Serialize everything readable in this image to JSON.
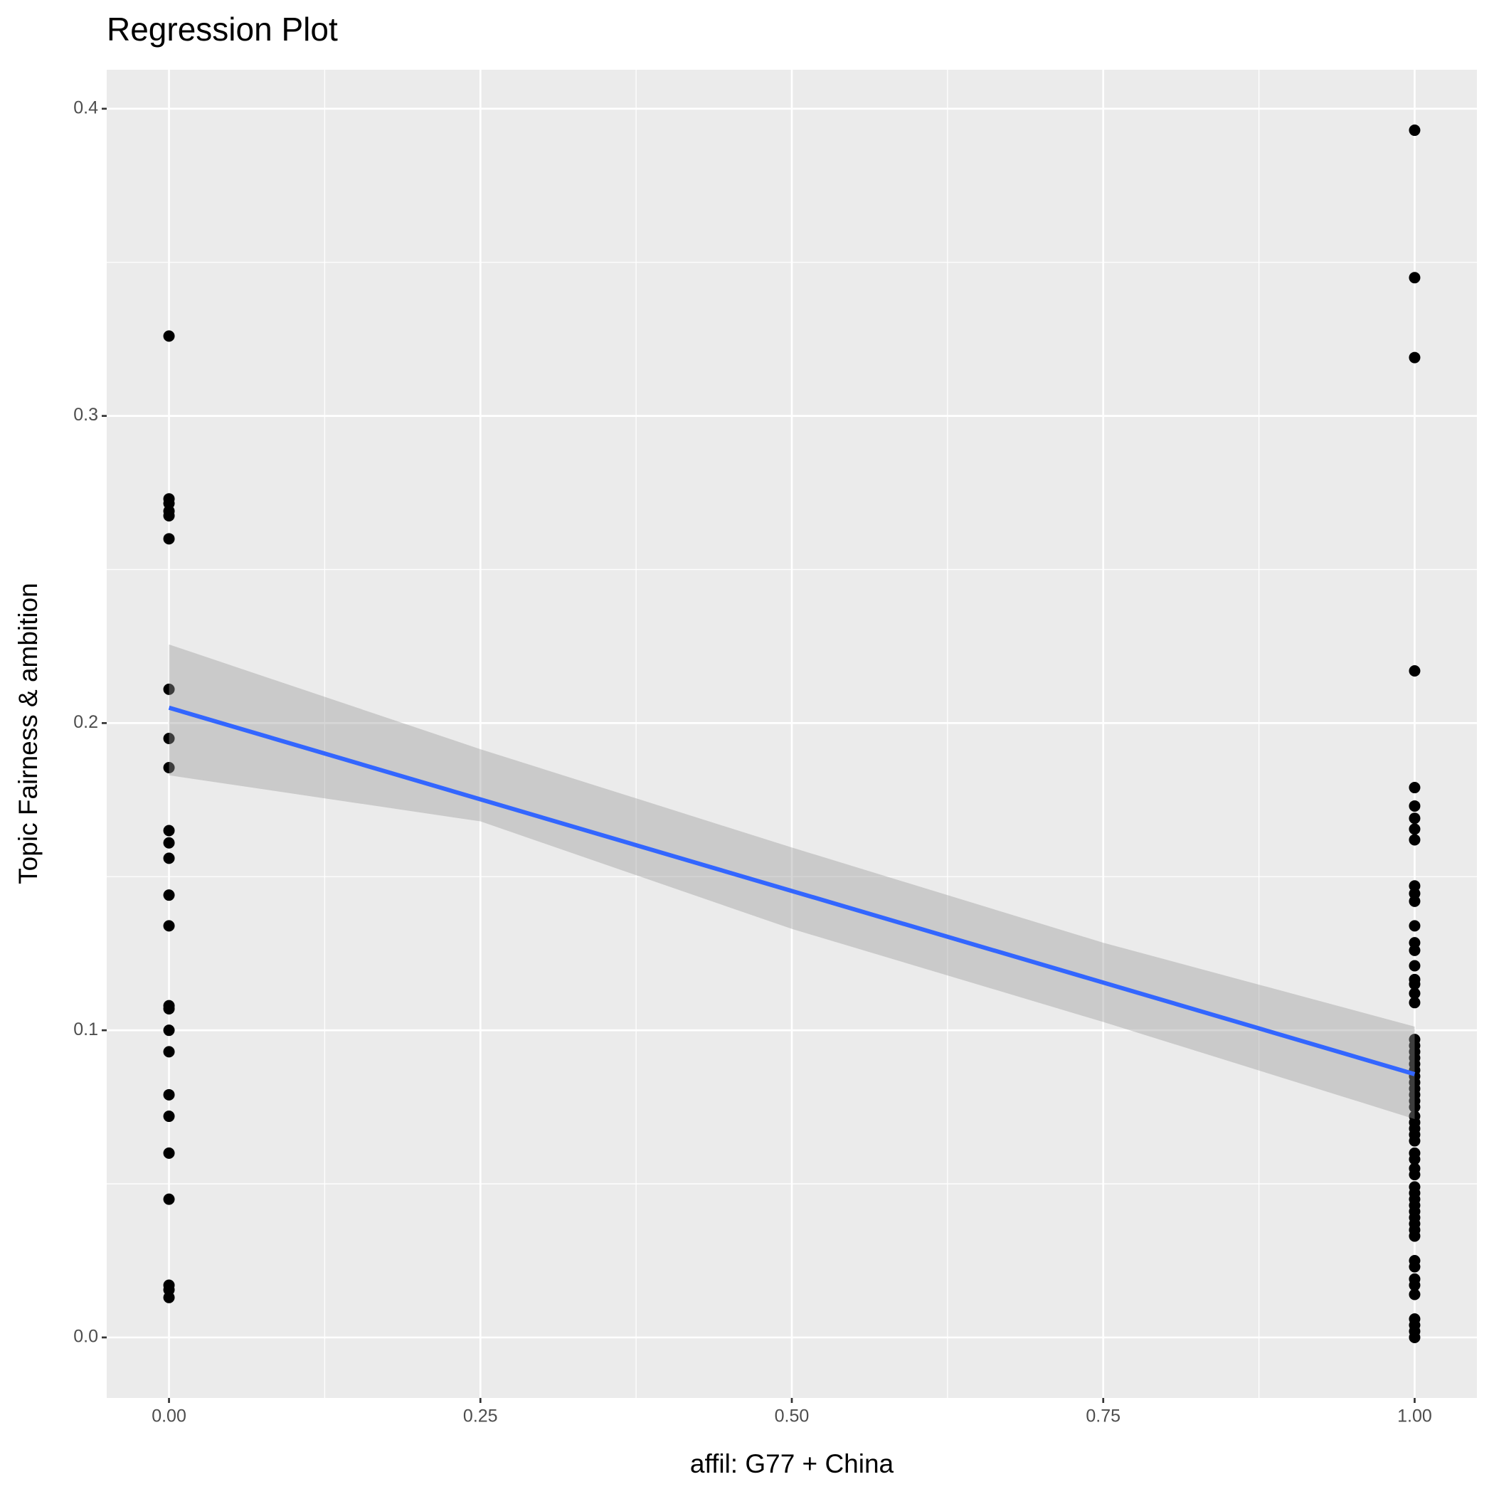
{
  "chart_data": {
    "type": "scatter",
    "title": "Regression Plot",
    "x_label": "affil: G77 + China",
    "y_label": "Topic Fairness & ambition",
    "xlim": [
      -0.05,
      1.05
    ],
    "ylim": [
      -0.0197,
      0.4127
    ],
    "xticks": [
      {
        "value": 0,
        "label": "0.00"
      },
      {
        "value": 0.25,
        "label": "0.25"
      },
      {
        "value": 0.5,
        "label": "0.50"
      },
      {
        "value": 0.75,
        "label": "0.75"
      },
      {
        "value": 1,
        "label": "1.00"
      }
    ],
    "yticks": [
      {
        "value": 0,
        "label": "0.0"
      },
      {
        "value": 0.1,
        "label": "0.1"
      },
      {
        "value": 0.2,
        "label": "0.2"
      },
      {
        "value": 0.3,
        "label": "0.3"
      },
      {
        "value": 0.4,
        "label": "0.4"
      }
    ],
    "minor_xticks": [
      0.125,
      0.375,
      0.625,
      0.875
    ],
    "minor_yticks": [
      0.05,
      0.15,
      0.25,
      0.35
    ],
    "grid": true,
    "points": {
      "color": "#000000",
      "x": [
        0,
        0,
        0,
        0,
        0,
        0,
        0,
        0,
        0,
        0,
        0,
        0,
        0,
        0,
        0,
        0,
        0,
        0,
        0,
        0,
        0,
        0,
        0,
        0,
        0,
        1,
        1,
        1,
        1,
        1,
        1,
        1,
        1,
        1,
        1,
        1,
        1,
        1,
        1,
        1,
        1,
        1,
        1,
        1,
        1,
        1,
        1,
        1,
        1,
        1,
        1,
        1,
        1,
        1,
        1,
        1,
        1,
        1,
        1,
        1,
        1,
        1,
        1,
        1,
        1,
        1,
        1,
        1,
        1,
        1,
        1,
        1,
        1,
        1,
        1,
        1,
        1,
        1,
        1,
        1,
        1,
        1,
        1,
        1
      ],
      "values": [
        0.326,
        0.273,
        0.2715,
        0.269,
        0.2675,
        0.26,
        0.211,
        0.195,
        0.1855,
        0.165,
        0.161,
        0.156,
        0.144,
        0.134,
        0.108,
        0.107,
        0.1,
        0.093,
        0.079,
        0.072,
        0.06,
        0.045,
        0.017,
        0.0155,
        0.013,
        0.393,
        0.345,
        0.319,
        0.217,
        0.179,
        0.173,
        0.169,
        0.1655,
        0.162,
        0.147,
        0.1445,
        0.142,
        0.134,
        0.1285,
        0.126,
        0.121,
        0.1165,
        0.115,
        0.112,
        0.109,
        0.097,
        0.095,
        0.093,
        0.091,
        0.089,
        0.087,
        0.085,
        0.083,
        0.081,
        0.079,
        0.077,
        0.075,
        0.072,
        0.07,
        0.068,
        0.066,
        0.064,
        0.06,
        0.058,
        0.055,
        0.053,
        0.049,
        0.047,
        0.045,
        0.043,
        0.041,
        0.039,
        0.037,
        0.035,
        0.033,
        0.025,
        0.023,
        0.019,
        0.017,
        0.014,
        0.006,
        0.004,
        0.002,
        0
      ]
    },
    "fit": {
      "color": "#3366FF",
      "x": [
        0,
        1
      ],
      "values": [
        0.205,
        0.0857
      ]
    },
    "band": {
      "color": "#999999",
      "x": [
        0,
        0.25,
        0.5,
        0.75,
        1
      ],
      "upper": [
        0.2256,
        0.1915,
        0.1595,
        0.1285,
        0.1012
      ],
      "lower": [
        0.183,
        0.168,
        0.133,
        0.1027,
        0.0711
      ]
    }
  }
}
